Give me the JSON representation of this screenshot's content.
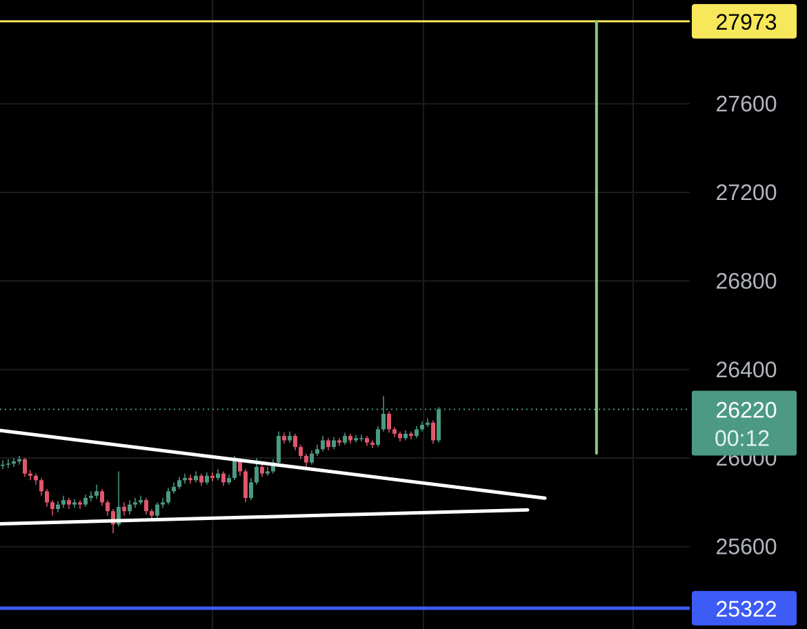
{
  "chart_data": {
    "type": "candlestick",
    "open": [
      25965,
      25970,
      25975,
      25985,
      25995,
      25930,
      25920,
      25900,
      25850,
      25800,
      25770,
      25790,
      25810,
      25790,
      25800,
      25790,
      25820,
      25830,
      25850,
      25800,
      25760,
      25700,
      25780,
      25760,
      25790,
      25800,
      25810,
      25760,
      25740,
      25790,
      25800,
      25850,
      25870,
      25900,
      25910,
      25900,
      25920,
      25890,
      25920,
      25910,
      25930,
      25890,
      25910,
      25990,
      25940,
      25820,
      25890,
      25960,
      25930,
      25940,
      25980,
      26100,
      26080,
      26100,
      26050,
      26010,
      25980,
      26020,
      26040,
      26080,
      26050,
      26080,
      26070,
      26100,
      26080,
      26090,
      26090,
      26070,
      26060,
      26130,
      26200,
      26130,
      26110,
      26090,
      26110,
      26100,
      26130,
      26150,
      26160,
      26080
    ],
    "high": [
      25990,
      25995,
      26000,
      26010,
      26000,
      25945,
      25930,
      25910,
      25860,
      25810,
      25805,
      25830,
      25820,
      25815,
      25810,
      25835,
      25850,
      25880,
      25860,
      25810,
      25770,
      25940,
      25800,
      25810,
      25820,
      25830,
      25820,
      25770,
      25800,
      25820,
      25865,
      25890,
      25915,
      25930,
      25925,
      25940,
      25930,
      25935,
      25935,
      25950,
      25940,
      25925,
      26010,
      26000,
      25950,
      25910,
      26000,
      25975,
      25960,
      25995,
      26120,
      26115,
      26120,
      26110,
      26060,
      26020,
      26035,
      26060,
      26100,
      26090,
      26095,
      26090,
      26115,
      26110,
      26105,
      26105,
      26100,
      26080,
      26145,
      26280,
      26210,
      26140,
      26120,
      26125,
      26120,
      26145,
      26165,
      26180,
      26170,
      26230
    ],
    "low": [
      25950,
      25955,
      25960,
      25970,
      25915,
      25900,
      25880,
      25830,
      25780,
      25740,
      25755,
      25775,
      25770,
      25775,
      25770,
      25780,
      25805,
      25815,
      25785,
      25740,
      25660,
      25690,
      25740,
      25745,
      25775,
      25790,
      25745,
      25720,
      25730,
      25775,
      25790,
      25840,
      25860,
      25885,
      25885,
      25890,
      25875,
      25880,
      25895,
      25900,
      25875,
      25880,
      25900,
      25920,
      25800,
      25810,
      25880,
      25915,
      25920,
      25930,
      25970,
      26065,
      26070,
      26035,
      25995,
      25960,
      25970,
      26010,
      26030,
      26035,
      26040,
      26055,
      26060,
      26065,
      26070,
      26075,
      26055,
      26045,
      26050,
      26120,
      26115,
      26095,
      26075,
      26080,
      26085,
      26090,
      26120,
      26140,
      26065,
      26070
    ],
    "close": [
      25970,
      25975,
      25985,
      25995,
      25930,
      25920,
      25900,
      25850,
      25800,
      25770,
      25790,
      25810,
      25790,
      25800,
      25790,
      25820,
      25830,
      25850,
      25800,
      25760,
      25700,
      25780,
      25760,
      25790,
      25800,
      25810,
      25760,
      25740,
      25790,
      25800,
      25850,
      25870,
      25900,
      25910,
      25900,
      25920,
      25890,
      25920,
      25910,
      25930,
      25890,
      25910,
      25990,
      25940,
      25820,
      25890,
      25960,
      25930,
      25940,
      25980,
      26100,
      26080,
      26100,
      26050,
      26010,
      25980,
      26020,
      26040,
      26080,
      26050,
      26080,
      26070,
      26100,
      26080,
      26090,
      26090,
      26070,
      26060,
      26130,
      26200,
      26130,
      26110,
      26090,
      26110,
      26100,
      26130,
      26150,
      26160,
      26080,
      26220
    ],
    "up_color": "#4a9a82",
    "down_color": "#e0566b",
    "xlim": [
      -0.5,
      124.5
    ],
    "xgrid": [
      38,
      76.25,
      114.25
    ],
    "ylim": [
      25228,
      28069
    ],
    "yticks": [
      25600,
      26000,
      26400,
      26800,
      27200,
      27600
    ],
    "grid": true,
    "price_lines": [
      {
        "value": 27973,
        "color": "#f6e85a"
      },
      {
        "value": 25322,
        "color": "#3d5bf5"
      }
    ],
    "last_price": {
      "value": 26220,
      "countdown": "00:12",
      "color": "#4c9a83"
    },
    "trendlines": [
      {
        "x": [
          -0.5,
          98.25
        ],
        "y": [
          26125,
          25819
        ]
      },
      {
        "x": [
          -0.5,
          95.1
        ],
        "y": [
          25703,
          25766
        ]
      }
    ],
    "measure_line": {
      "x": 107.6,
      "y": [
        26022,
        27973
      ],
      "color": "#8fc87f"
    }
  }
}
